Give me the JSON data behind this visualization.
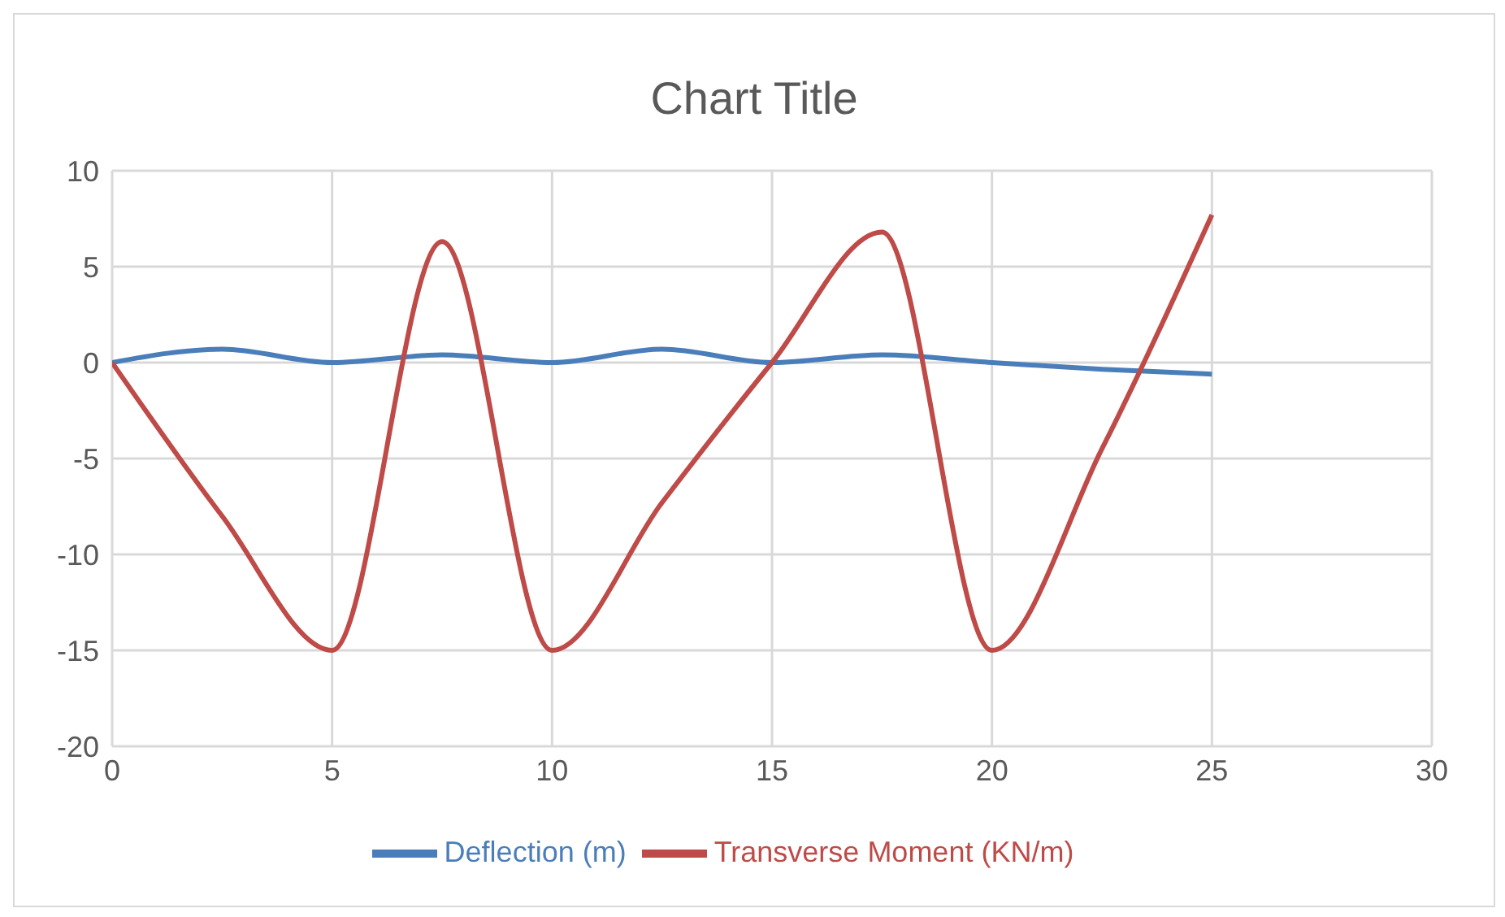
{
  "chart_data": {
    "type": "line",
    "title": "Chart Title",
    "x": [
      0,
      2.5,
      5,
      7.5,
      10,
      12.5,
      15,
      17.5,
      20,
      22.5,
      25
    ],
    "series": [
      {
        "name": "Deflection (m)",
        "color": "#4a7ebb",
        "values": [
          0,
          0.7,
          0,
          0.4,
          0,
          0.7,
          0,
          0.4,
          0,
          -0.35,
          -0.6
        ]
      },
      {
        "name": "Transverse Moment (KN/m)",
        "color": "#be4b48",
        "values": [
          0,
          -8,
          -15,
          6.3,
          -15,
          -7.3,
          0,
          6.8,
          -15,
          -4.5,
          7.7
        ]
      }
    ],
    "xlim": [
      0,
      30
    ],
    "xticks": [
      0,
      5,
      10,
      15,
      20,
      25,
      30
    ],
    "ylim": [
      -20,
      10
    ],
    "yticks": [
      -20,
      -15,
      -10,
      -5,
      0,
      5,
      10
    ],
    "grid": true,
    "legend": "bottom",
    "marker": "none",
    "line_style": "solid"
  }
}
